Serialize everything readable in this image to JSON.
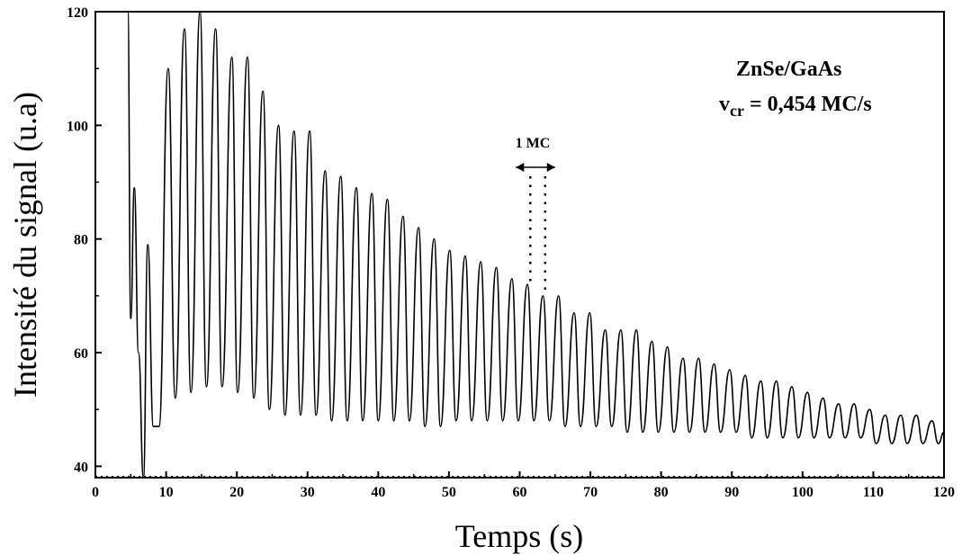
{
  "chart_data": {
    "type": "line",
    "xlabel": "Temps (s)",
    "ylabel": "Intensité du signal (u.a)",
    "xlim": [
      0,
      120
    ],
    "ylim": [
      38,
      120
    ],
    "x_ticks": [
      "0",
      "10",
      "20",
      "30",
      "40",
      "50",
      "60",
      "70",
      "80",
      "90",
      "100",
      "110",
      "120"
    ],
    "y_ticks": [
      "40",
      "60",
      "80",
      "100",
      "120"
    ],
    "grid": false,
    "line_color": "#000000",
    "annotations": {
      "material": "ZnSe/GaAs",
      "rate_symbol": "v",
      "rate_subscript": "cr",
      "rate_value": "= 0,454 MC/s",
      "period_label": "1 MC",
      "period_start_x": 61.5,
      "period_end_x": 63.6
    },
    "series": [
      {
        "x": [
          4.6,
          5.0,
          5.5,
          6.1,
          6.8,
          7.4,
          8.2,
          9.0,
          10.3,
          11.3,
          12.6,
          13.5,
          14.8,
          15.7,
          17.0,
          17.9,
          19.3,
          20.1,
          21.5,
          22.4,
          23.7,
          24.6,
          25.9,
          26.8,
          28.1,
          29.0,
          30.3,
          31.2,
          32.5,
          33.4,
          34.7,
          35.6,
          36.9,
          37.8,
          39.1,
          40.0,
          41.3,
          42.2,
          43.5,
          44.4,
          45.7,
          46.6,
          47.9,
          48.8,
          50.1,
          51.0,
          52.3,
          53.2,
          54.5,
          55.4,
          56.7,
          57.6,
          58.9,
          59.8,
          61.1,
          62.0,
          63.3,
          64.2,
          65.5,
          66.4,
          67.7,
          68.6,
          69.9,
          70.8,
          72.1,
          73.0,
          74.3,
          75.2,
          76.5,
          77.4,
          78.7,
          79.6,
          80.9,
          81.8,
          83.1,
          84.0,
          85.3,
          86.2,
          87.5,
          88.4,
          89.7,
          90.6,
          91.9,
          92.8,
          94.1,
          95.0,
          96.3,
          97.2,
          98.5,
          99.4,
          100.7,
          101.6,
          102.9,
          103.8,
          105.1,
          106.0,
          107.3,
          108.2,
          109.5,
          110.4,
          111.7,
          112.6,
          113.9,
          114.8,
          116.1,
          117.0,
          118.3,
          119.2,
          120.0
        ],
        "y": [
          120,
          66,
          89,
          60,
          38,
          79,
          47,
          47,
          110,
          52,
          117,
          53,
          120,
          54,
          117,
          54,
          112,
          53,
          112,
          52,
          106,
          50,
          100,
          49,
          99,
          49,
          99,
          49,
          92,
          48,
          91,
          48,
          89,
          48,
          88,
          48,
          87,
          48,
          84,
          48,
          82,
          47,
          80,
          47,
          78,
          48,
          77,
          48,
          76,
          48,
          75,
          48,
          73,
          48,
          72,
          48,
          70,
          48,
          70,
          47,
          67,
          47,
          67,
          47,
          64,
          47,
          64,
          46,
          64,
          46,
          62,
          46,
          61,
          46,
          59,
          46,
          59,
          46,
          58,
          46,
          57,
          46,
          56,
          45,
          55,
          45,
          55,
          45,
          54,
          45,
          53,
          45,
          52,
          45,
          51,
          45,
          51,
          45,
          50,
          44,
          49,
          44,
          49,
          44,
          49,
          44,
          48,
          44,
          46
        ]
      }
    ]
  }
}
